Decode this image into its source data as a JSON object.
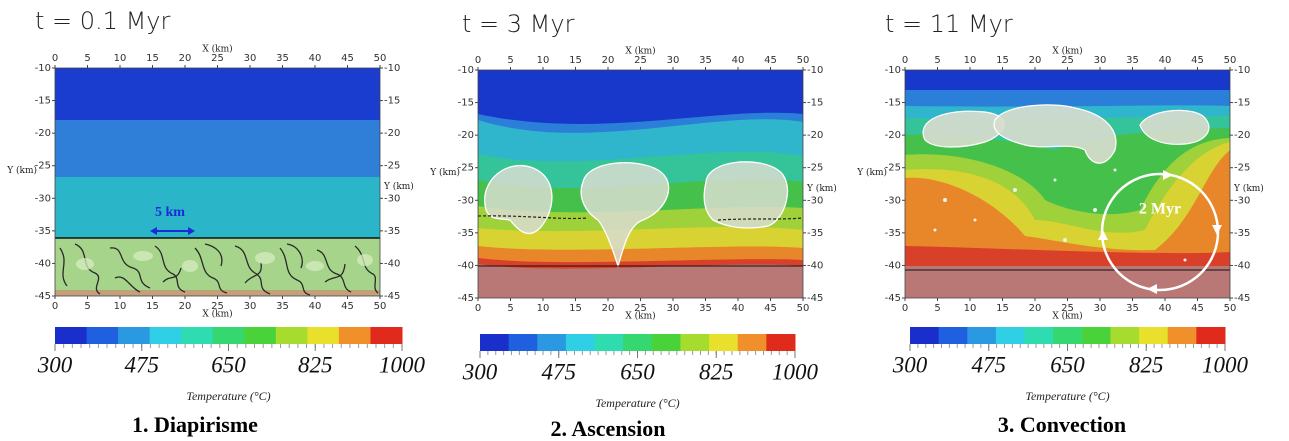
{
  "axes": {
    "xlabel": "X (km)",
    "ylabel": "Y (km)",
    "xlim": [
      0,
      50
    ],
    "ylim": [
      -10,
      -45
    ],
    "xticks": [
      0,
      5,
      10,
      15,
      20,
      25,
      30,
      35,
      40,
      45,
      50
    ],
    "yticks": [
      -10,
      -15,
      -20,
      -25,
      -30,
      -35,
      -40,
      -45
    ]
  },
  "colorbar": {
    "label": "Temperature (°C)",
    "lim": [
      300,
      1000
    ],
    "ticks": [
      300,
      475,
      650,
      825,
      1000
    ]
  },
  "panels": [
    {
      "time": "t = 0.1 Myr",
      "caption": "1. Diapirisme",
      "annotation": "5 km"
    },
    {
      "time": "t = 3 Myr",
      "caption": "2. Ascension"
    },
    {
      "time": "t = 11 Myr",
      "caption": "3. Convection",
      "annotation": "2 Myr"
    }
  ]
}
